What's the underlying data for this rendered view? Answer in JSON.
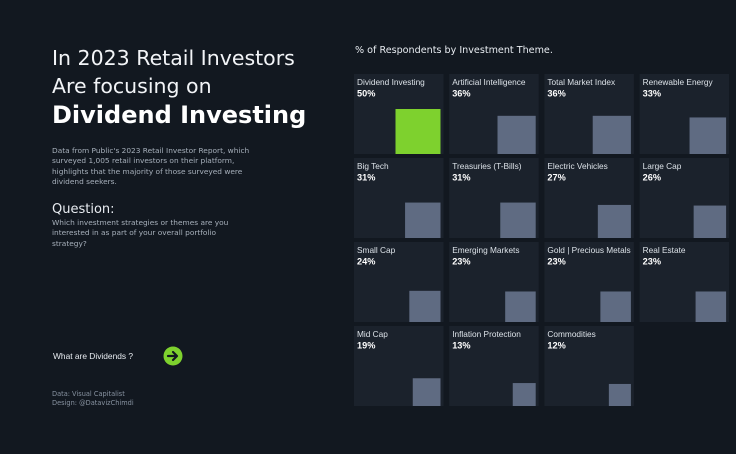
{
  "headline": {
    "line1": "In 2023 Retail Investors",
    "line2": "Are focusing on",
    "line3": "Dividend Investing"
  },
  "intro": "Data from Public's 2023 Retail Investor Report, which surveyed 1,005 retail investors on their platform, highlights that the majority of those surveyed were dividend seekers.",
  "question": {
    "title": "Question:",
    "text": "Which investment strategies or themes are you interested in as part of your overall portfolio strategy?"
  },
  "cta": {
    "label": "What are Dividends ?",
    "icon": "arrow-right-circle-icon",
    "color": "#7ed12e"
  },
  "credits": {
    "data": "Data: Visual Capitalist",
    "design": "Design: @DatavizChimdi"
  },
  "colors": {
    "background": "#121820",
    "cell": "#1b222c",
    "square": "#5f6b82",
    "highlight": "#7ed12e"
  },
  "chart_data": {
    "type": "table",
    "title": "% of Respondents by Investment Theme.",
    "unit": "%",
    "max": 50,
    "items": [
      {
        "label": "Dividend Investing",
        "value": 50,
        "display": "50%"
      },
      {
        "label": "Artificial Intelligence",
        "value": 36,
        "display": "36%"
      },
      {
        "label": "Total Market Index",
        "value": 36,
        "display": "36%"
      },
      {
        "label": "Renewable Energy",
        "value": 33,
        "display": "33%"
      },
      {
        "label": "Big Tech",
        "value": 31,
        "display": "31%"
      },
      {
        "label": "Treasuries (T-Bills)",
        "value": 31,
        "display": "31%"
      },
      {
        "label": "Electric Vehicles",
        "value": 27,
        "display": "27%"
      },
      {
        "label": "Large Cap",
        "value": 26,
        "display": "26%"
      },
      {
        "label": "Small Cap",
        "value": 24,
        "display": "24%"
      },
      {
        "label": "Emerging Markets",
        "value": 23,
        "display": "23%"
      },
      {
        "label": "Gold | Precious Metals",
        "value": 23,
        "display": "23%"
      },
      {
        "label": "Real Estate",
        "value": 23,
        "display": "23%"
      },
      {
        "label": "Mid Cap",
        "value": 19,
        "display": "19%"
      },
      {
        "label": "Inflation Protection",
        "value": 13,
        "display": "13%"
      },
      {
        "label": "Commodities",
        "value": 12,
        "display": "12%"
      }
    ]
  }
}
